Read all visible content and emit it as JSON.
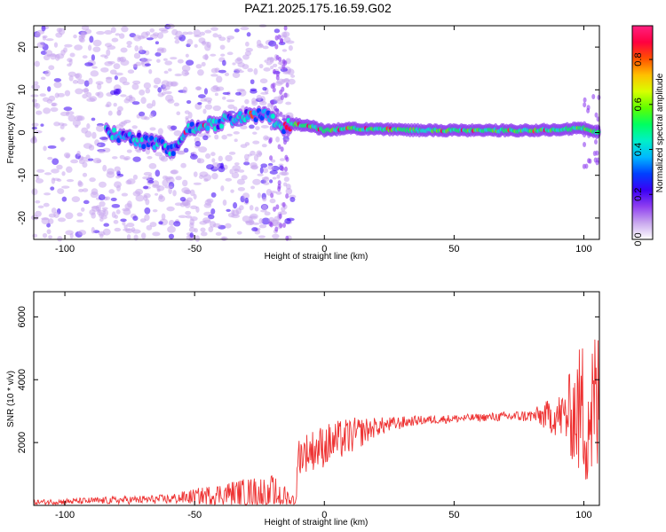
{
  "title": "PAZ1.2025.175.16.59.G02",
  "chart_data": [
    {
      "type": "heatmap",
      "name": "spectrogram",
      "xlabel": "Height of straight line (km)",
      "ylabel": "Frequency (Hz)",
      "xlim": [
        -112,
        106
      ],
      "ylim": [
        -25,
        25
      ],
      "xticks": [
        -100,
        -50,
        0,
        50,
        100
      ],
      "yticks": [
        -20,
        -10,
        0,
        10,
        20
      ],
      "grid": false,
      "colorbar": {
        "label": "Normalized spectral amplitude",
        "range": [
          0.0,
          0.95
        ],
        "ticks": [
          "0.0",
          "0.2",
          "0.4",
          "0.6",
          "0.8"
        ],
        "colors": [
          "#ffffff",
          "#c9a8ee",
          "#8f3ff0",
          "#3a00f5",
          "#0040ff",
          "#00b8ff",
          "#00f0c8",
          "#00ff60",
          "#60ff00",
          "#d8ff00",
          "#ffc000",
          "#ff5000",
          "#ff0040",
          "#ff2080"
        ]
      },
      "ridge": [
        {
          "x": -84,
          "f": 0.2
        },
        {
          "x": -75,
          "f": -1.5
        },
        {
          "x": -65,
          "f": -2.5
        },
        {
          "x": -58,
          "f": -4
        },
        {
          "x": -52,
          "f": 1
        },
        {
          "x": -45,
          "f": 1.5
        },
        {
          "x": -38,
          "f": 3
        },
        {
          "x": -30,
          "f": 4
        },
        {
          "x": -22,
          "f": 4.5
        },
        {
          "x": -16,
          "f": 1
        },
        {
          "x": -12,
          "f": 2
        },
        {
          "x": -5,
          "f": 1.5
        },
        {
          "x": 0,
          "f": 0.5
        },
        {
          "x": 10,
          "f": 1
        },
        {
          "x": 20,
          "f": 0.8
        },
        {
          "x": 40,
          "f": 0.5
        },
        {
          "x": 60,
          "f": 0.5
        },
        {
          "x": 80,
          "f": 0.5
        },
        {
          "x": 100,
          "f": 1
        },
        {
          "x": 106,
          "f": 0
        }
      ]
    },
    {
      "type": "line",
      "name": "snr",
      "xlabel": "Height of straight line (km)",
      "ylabel": "SNR (10 * v/v)",
      "xlim": [
        -112,
        106
      ],
      "ylim": [
        0,
        6800
      ],
      "xticks": [
        -100,
        -50,
        0,
        50,
        100
      ],
      "yticks": [
        2000,
        4000,
        6000
      ],
      "grid": false,
      "color": "#ee3333",
      "envelope": [
        {
          "x": -112,
          "y": 100,
          "noise": 80
        },
        {
          "x": -60,
          "y": 200,
          "noise": 150
        },
        {
          "x": -35,
          "y": 400,
          "noise": 400
        },
        {
          "x": -20,
          "y": 400,
          "noise": 600
        },
        {
          "x": -11,
          "y": 150,
          "noise": 150
        },
        {
          "x": -10,
          "y": 1600,
          "noise": 600
        },
        {
          "x": 0,
          "y": 1900,
          "noise": 700
        },
        {
          "x": 10,
          "y": 2200,
          "noise": 600
        },
        {
          "x": 20,
          "y": 2500,
          "noise": 300
        },
        {
          "x": 35,
          "y": 2700,
          "noise": 150
        },
        {
          "x": 60,
          "y": 2800,
          "noise": 120
        },
        {
          "x": 80,
          "y": 2850,
          "noise": 200
        },
        {
          "x": 92,
          "y": 2850,
          "noise": 800
        },
        {
          "x": 100,
          "y": 3000,
          "noise": 2500
        },
        {
          "x": 106,
          "y": 3000,
          "noise": 2800
        }
      ]
    }
  ]
}
